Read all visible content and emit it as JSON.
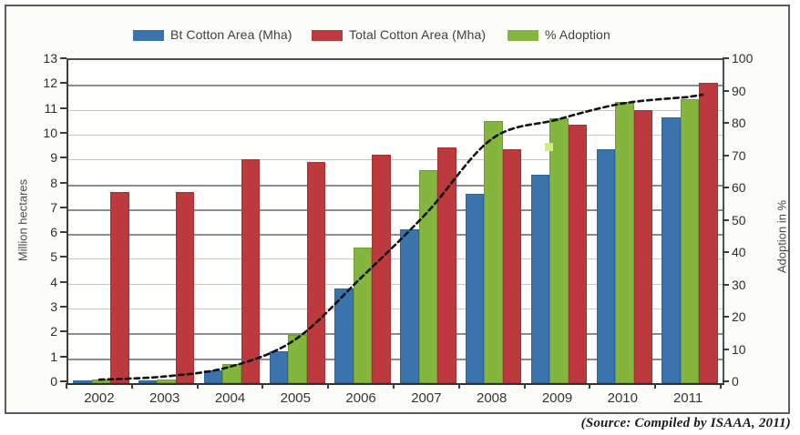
{
  "legend": {
    "items": [
      {
        "key": "bt",
        "label": "Bt Cotton Area (Mha)",
        "color": "#3b73ad"
      },
      {
        "key": "total",
        "label": "Total Cotton Area (Mha)",
        "color": "#bc3a3d"
      },
      {
        "key": "adoption",
        "label": "% Adoption",
        "color": "#83b53f"
      }
    ]
  },
  "axes": {
    "left_title": "Million hectares",
    "right_title": "Adoption in %",
    "left_ticks": [
      13,
      12,
      11,
      10,
      9,
      8,
      7,
      6,
      5,
      4,
      3,
      2,
      1,
      0
    ],
    "right_ticks": [
      100,
      90,
      80,
      70,
      60,
      50,
      40,
      30,
      20,
      10,
      0
    ],
    "dark_gridlines": [
      12,
      8,
      7,
      6,
      2,
      1
    ]
  },
  "source_note": "(Source: Compiled by ISAAA, 2011)",
  "chart_data": {
    "type": "bar",
    "title": "",
    "categories": [
      "2002",
      "2003",
      "2004",
      "2005",
      "2006",
      "2007",
      "2008",
      "2009",
      "2010",
      "2011"
    ],
    "series": [
      {
        "name": "Bt Cotton Area (Mha)",
        "key": "bt",
        "axis": "left",
        "color": "#3b73ad",
        "values": [
          0.1,
          0.1,
          0.5,
          1.3,
          3.8,
          6.2,
          7.6,
          8.4,
          9.4,
          10.7
        ]
      },
      {
        "name": "% Adoption",
        "key": "adoption",
        "axis": "right",
        "color": "#83b53f",
        "values": [
          1,
          1,
          6,
          15,
          42,
          66,
          81,
          82,
          87,
          88
        ]
      },
      {
        "name": "Total Cotton Area (Mha)",
        "key": "total",
        "axis": "left",
        "color": "#bc3a3d",
        "values": [
          7.7,
          7.7,
          9.0,
          8.9,
          9.2,
          9.5,
          9.4,
          10.4,
          11.0,
          12.1
        ]
      }
    ],
    "trend_line": {
      "name": "% Adoption trend",
      "axis": "right",
      "style": "dashed-black",
      "values": [
        0.5,
        1.5,
        4.5,
        13,
        32,
        52,
        75,
        81,
        86,
        88
      ]
    },
    "xlabel": "",
    "ylabel_left": "Million hectares",
    "ylabel_right": "Adoption in %",
    "ylim_left": [
      0,
      13
    ],
    "ylim_right": [
      0,
      100
    ],
    "grid": "horizontal",
    "legend_position": "top"
  }
}
